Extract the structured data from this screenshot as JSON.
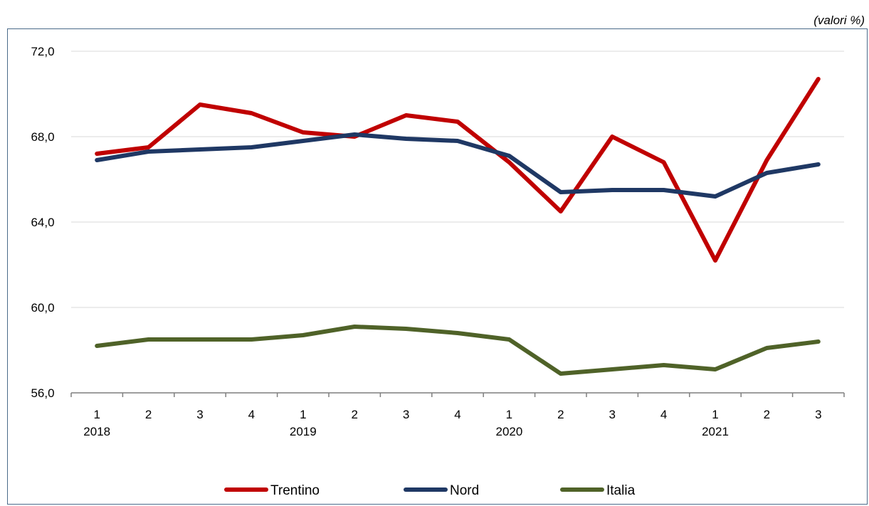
{
  "unit_note": "(valori %)",
  "colors": {
    "Trentino": "#c00000",
    "Nord": "#1f3864",
    "Italia": "#4f6228",
    "grid": "#d9d9d9",
    "axis": "#7f7f7f"
  },
  "chart_data": {
    "type": "line",
    "title": "",
    "xlabel": "",
    "ylabel": "",
    "ylim": [
      56.0,
      72.0
    ],
    "yticks": [
      "72,0",
      "68,0",
      "64,0",
      "60,0",
      "56,0"
    ],
    "ytick_values": [
      72,
      68,
      64,
      60,
      56
    ],
    "grid": true,
    "legend": "bottom",
    "quarters": [
      "1",
      "2",
      "3",
      "4",
      "1",
      "2",
      "3",
      "4",
      "1",
      "2",
      "3",
      "4",
      "1",
      "2",
      "3"
    ],
    "years": [
      {
        "label": "2018",
        "index": 0
      },
      {
        "label": "2019",
        "index": 4
      },
      {
        "label": "2020",
        "index": 8
      },
      {
        "label": "2021",
        "index": 12
      }
    ],
    "series": [
      {
        "name": "Trentino",
        "values": [
          67.2,
          67.5,
          69.5,
          69.1,
          68.2,
          68.0,
          69.0,
          68.7,
          66.8,
          64.5,
          68.0,
          66.8,
          62.2,
          66.9,
          70.7
        ]
      },
      {
        "name": "Nord",
        "values": [
          66.9,
          67.3,
          67.4,
          67.5,
          67.8,
          68.1,
          67.9,
          67.8,
          67.1,
          65.4,
          65.5,
          65.5,
          65.2,
          66.3,
          66.7
        ]
      },
      {
        "name": "Italia",
        "values": [
          58.2,
          58.5,
          58.5,
          58.5,
          58.7,
          59.1,
          59.0,
          58.8,
          58.5,
          56.9,
          57.1,
          57.3,
          57.1,
          58.1,
          58.4
        ]
      }
    ]
  }
}
